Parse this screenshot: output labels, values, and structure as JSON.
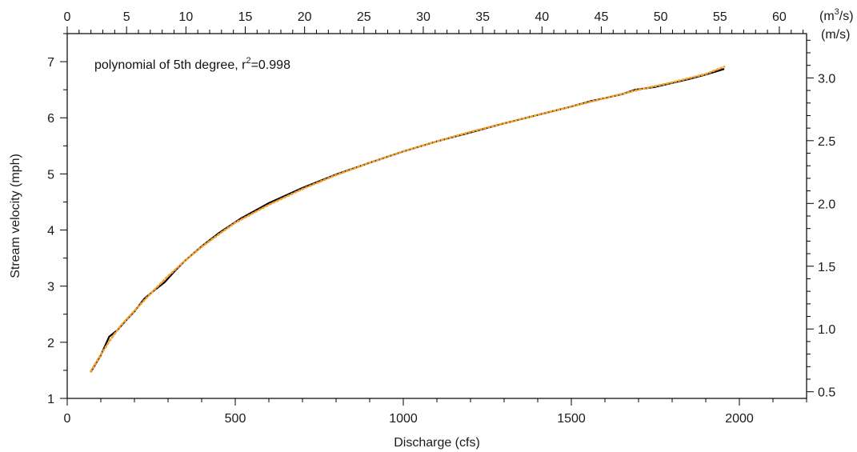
{
  "chart_data": {
    "type": "line",
    "annotation": {
      "prefix": "polynomial of 5th degree, r",
      "superscript": "2",
      "suffix": "=0.998"
    },
    "xlabel": "Discharge (cfs)",
    "ylabel": "Stream velocity (mph)",
    "x_top_label": {
      "prefix": "(m",
      "superscript": "3",
      "suffix": "/s)"
    },
    "y_right_label": "(m/s)",
    "xlim": [
      0,
      2200
    ],
    "ylim": [
      1,
      7.5
    ],
    "x_ticks": [
      0,
      500,
      1000,
      1500,
      2000
    ],
    "y_ticks": [
      1,
      2,
      3,
      4,
      5,
      6,
      7
    ],
    "x_top_ticks": [
      0,
      5,
      10,
      15,
      20,
      25,
      30,
      35,
      40,
      45,
      50,
      55,
      60
    ],
    "y_right_ticks": [
      {
        "value": 0.5,
        "label": "0.5"
      },
      {
        "value": 1.0,
        "label": "1.0"
      },
      {
        "value": 1.5,
        "label": "1.5"
      },
      {
        "value": 2.0,
        "label": "2.0"
      },
      {
        "value": 2.5,
        "label": "2.5"
      },
      {
        "value": 3.0,
        "label": "3.0"
      }
    ],
    "grid": false,
    "series": [
      {
        "color": "#000000",
        "style": "solid",
        "x": [
          70,
          100,
          125,
          150,
          175,
          200,
          230,
          260,
          290,
          320,
          350,
          400,
          450,
          515,
          600,
          700,
          800,
          900,
          1000,
          1100,
          1200,
          1300,
          1400,
          1500,
          1560,
          1600,
          1650,
          1690,
          1750,
          1800,
          1850,
          1900,
          1955
        ],
        "values": [
          1.47,
          1.77,
          2.1,
          2.22,
          2.39,
          2.55,
          2.78,
          2.93,
          3.07,
          3.27,
          3.45,
          3.71,
          3.94,
          4.2,
          4.48,
          4.75,
          4.99,
          5.2,
          5.4,
          5.58,
          5.74,
          5.9,
          6.05,
          6.2,
          6.3,
          6.35,
          6.42,
          6.5,
          6.55,
          6.62,
          6.69,
          6.77,
          6.87
        ]
      },
      {
        "color": "#f5a030",
        "style": "dotted",
        "x": [
          70,
          100,
          130,
          160,
          200,
          250,
          300,
          350,
          400,
          450,
          500,
          600,
          700,
          800,
          900,
          1000,
          1100,
          1200,
          1300,
          1400,
          1500,
          1600,
          1700,
          1800,
          1900,
          1955
        ],
        "values": [
          1.48,
          1.78,
          2.06,
          2.3,
          2.56,
          2.88,
          3.18,
          3.45,
          3.7,
          3.92,
          4.13,
          4.45,
          4.73,
          4.98,
          5.2,
          5.4,
          5.58,
          5.75,
          5.9,
          6.05,
          6.2,
          6.35,
          6.5,
          6.63,
          6.78,
          6.91
        ]
      }
    ]
  }
}
